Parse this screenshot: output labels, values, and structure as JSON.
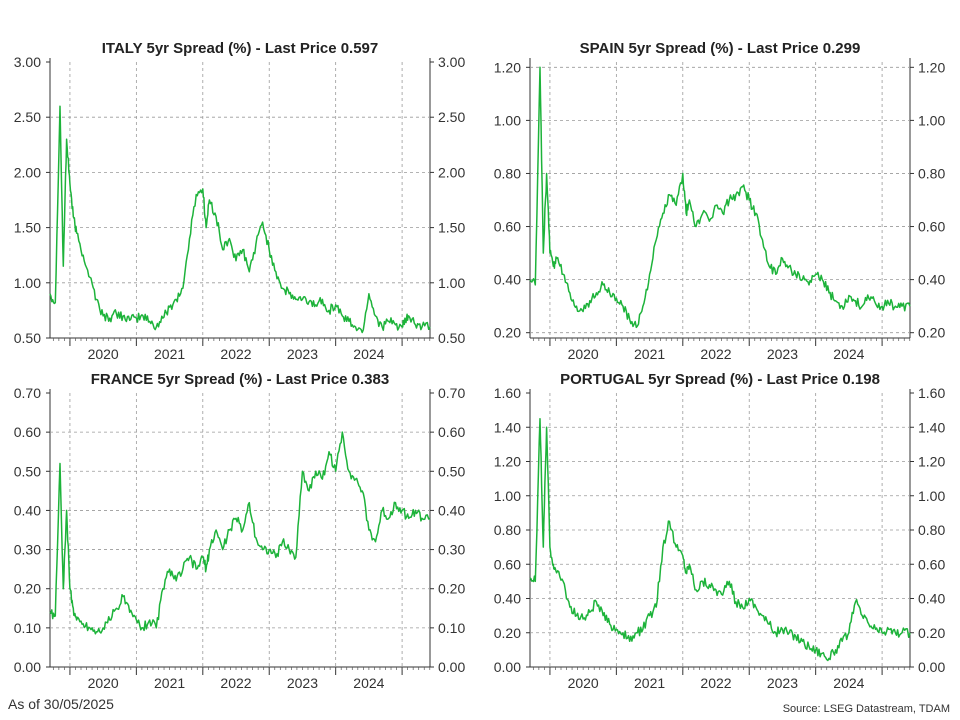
{
  "as_of": "As of 30/05/2025",
  "source": "Source: LSEG Datastream, TDAM",
  "line_color": "#1db33a",
  "chart_data": [
    {
      "type": "line",
      "title": "ITALY 5yr Spread (%) - Last Price 0.597",
      "x_ticks": [
        "2020",
        "2021",
        "2022",
        "2023",
        "2024"
      ],
      "xlim": [
        2019.7,
        2025.42
      ],
      "ylim": [
        0.5,
        3.0
      ],
      "y_ticks": [
        "0.50",
        "1.00",
        "1.50",
        "2.00",
        "2.50",
        "3.00"
      ],
      "grid": true,
      "series": [
        {
          "x": [
            2019.7,
            2019.78,
            2019.85,
            2019.9,
            2019.95,
            2020.0,
            2020.05,
            2020.1,
            2020.2,
            2020.3,
            2020.4,
            2020.5,
            2020.6,
            2020.7,
            2020.8,
            2020.9,
            2021.0,
            2021.1,
            2021.2,
            2021.3,
            2021.4,
            2021.5,
            2021.6,
            2021.7,
            2021.8,
            2021.9,
            2022.0,
            2022.05,
            2022.1,
            2022.2,
            2022.3,
            2022.4,
            2022.5,
            2022.6,
            2022.7,
            2022.8,
            2022.9,
            2023.0,
            2023.1,
            2023.2,
            2023.3,
            2023.4,
            2023.5,
            2023.6,
            2023.7,
            2023.8,
            2023.9,
            2024.0,
            2024.1,
            2024.2,
            2024.3,
            2024.4,
            2024.5,
            2024.6,
            2024.7,
            2024.8,
            2024.9,
            2025.0,
            2025.05,
            2025.1,
            2025.2,
            2025.3,
            2025.42
          ],
          "values": [
            0.9,
            0.82,
            2.6,
            1.15,
            2.3,
            1.9,
            1.6,
            1.45,
            1.25,
            1.05,
            0.85,
            0.7,
            0.68,
            0.72,
            0.7,
            0.66,
            0.68,
            0.7,
            0.65,
            0.6,
            0.68,
            0.78,
            0.85,
            0.95,
            1.4,
            1.8,
            1.85,
            1.5,
            1.75,
            1.6,
            1.3,
            1.4,
            1.2,
            1.3,
            1.1,
            1.35,
            1.55,
            1.3,
            1.1,
            0.95,
            0.9,
            0.85,
            0.85,
            0.83,
            0.8,
            0.85,
            0.75,
            0.8,
            0.7,
            0.65,
            0.6,
            0.55,
            0.9,
            0.7,
            0.6,
            0.65,
            0.62,
            0.6,
            0.65,
            0.7,
            0.62,
            0.6,
            0.6
          ]
        }
      ]
    },
    {
      "type": "line",
      "title": "SPAIN 5yr Spread (%) - Last Price 0.299",
      "x_ticks": [
        "2020",
        "2021",
        "2022",
        "2023",
        "2024"
      ],
      "xlim": [
        2019.7,
        2025.42
      ],
      "ylim": [
        0.18,
        1.22
      ],
      "y_ticks": [
        "0.20",
        "0.40",
        "0.60",
        "0.80",
        "1.00",
        "1.20"
      ],
      "grid": true,
      "series": [
        {
          "x": [
            2019.7,
            2019.78,
            2019.85,
            2019.9,
            2019.95,
            2020.0,
            2020.05,
            2020.1,
            2020.2,
            2020.3,
            2020.4,
            2020.5,
            2020.6,
            2020.7,
            2020.8,
            2020.9,
            2021.0,
            2021.1,
            2021.2,
            2021.3,
            2021.4,
            2021.5,
            2021.6,
            2021.7,
            2021.8,
            2021.9,
            2022.0,
            2022.05,
            2022.1,
            2022.2,
            2022.3,
            2022.4,
            2022.5,
            2022.6,
            2022.7,
            2022.8,
            2022.9,
            2023.0,
            2023.1,
            2023.2,
            2023.3,
            2023.4,
            2023.5,
            2023.6,
            2023.7,
            2023.8,
            2023.9,
            2024.0,
            2024.1,
            2024.2,
            2024.3,
            2024.4,
            2024.5,
            2024.6,
            2024.7,
            2024.8,
            2024.9,
            2025.0,
            2025.1,
            2025.2,
            2025.3,
            2025.42
          ],
          "values": [
            0.4,
            0.38,
            1.2,
            0.5,
            0.8,
            0.5,
            0.45,
            0.48,
            0.42,
            0.35,
            0.3,
            0.28,
            0.32,
            0.35,
            0.38,
            0.35,
            0.33,
            0.3,
            0.25,
            0.22,
            0.3,
            0.42,
            0.55,
            0.65,
            0.72,
            0.68,
            0.8,
            0.65,
            0.7,
            0.6,
            0.65,
            0.62,
            0.68,
            0.65,
            0.7,
            0.72,
            0.75,
            0.7,
            0.65,
            0.55,
            0.45,
            0.42,
            0.48,
            0.45,
            0.42,
            0.4,
            0.38,
            0.42,
            0.4,
            0.35,
            0.32,
            0.3,
            0.34,
            0.32,
            0.3,
            0.33,
            0.31,
            0.3,
            0.31,
            0.3,
            0.3,
            0.3
          ]
        }
      ]
    },
    {
      "type": "line",
      "title": "FRANCE 5yr Spread (%) - Last Price 0.383",
      "x_ticks": [
        "2020",
        "2021",
        "2022",
        "2023",
        "2024"
      ],
      "xlim": [
        2019.7,
        2025.42
      ],
      "ylim": [
        0.0,
        0.7
      ],
      "y_ticks": [
        "0.00",
        "0.10",
        "0.20",
        "0.30",
        "0.40",
        "0.50",
        "0.60",
        "0.70"
      ],
      "grid": true,
      "series": [
        {
          "x": [
            2019.7,
            2019.78,
            2019.85,
            2019.9,
            2019.95,
            2020.0,
            2020.05,
            2020.1,
            2020.2,
            2020.3,
            2020.4,
            2020.5,
            2020.6,
            2020.7,
            2020.8,
            2020.9,
            2021.0,
            2021.1,
            2021.2,
            2021.3,
            2021.4,
            2021.5,
            2021.6,
            2021.7,
            2021.8,
            2021.9,
            2022.0,
            2022.05,
            2022.1,
            2022.2,
            2022.3,
            2022.4,
            2022.5,
            2022.6,
            2022.7,
            2022.8,
            2022.9,
            2023.0,
            2023.1,
            2023.2,
            2023.3,
            2023.4,
            2023.5,
            2023.6,
            2023.7,
            2023.8,
            2023.9,
            2024.0,
            2024.1,
            2024.2,
            2024.3,
            2024.4,
            2024.5,
            2024.6,
            2024.7,
            2024.8,
            2024.9,
            2025.0,
            2025.1,
            2025.2,
            2025.3,
            2025.42
          ],
          "values": [
            0.14,
            0.13,
            0.52,
            0.2,
            0.4,
            0.2,
            0.15,
            0.12,
            0.11,
            0.1,
            0.09,
            0.1,
            0.12,
            0.15,
            0.18,
            0.14,
            0.12,
            0.1,
            0.12,
            0.1,
            0.2,
            0.25,
            0.22,
            0.25,
            0.28,
            0.25,
            0.28,
            0.25,
            0.3,
            0.35,
            0.3,
            0.35,
            0.38,
            0.35,
            0.42,
            0.33,
            0.3,
            0.3,
            0.28,
            0.32,
            0.3,
            0.28,
            0.5,
            0.45,
            0.5,
            0.48,
            0.55,
            0.5,
            0.6,
            0.5,
            0.48,
            0.45,
            0.35,
            0.32,
            0.4,
            0.38,
            0.42,
            0.4,
            0.38,
            0.4,
            0.38,
            0.38
          ]
        }
      ]
    },
    {
      "type": "line",
      "title": "PORTUGAL 5yr Spread (%) - Last Price 0.198",
      "x_ticks": [
        "2020",
        "2021",
        "2022",
        "2023",
        "2024"
      ],
      "xlim": [
        2019.7,
        2025.42
      ],
      "ylim": [
        0.0,
        1.6
      ],
      "y_ticks": [
        "0.00",
        "0.20",
        "0.40",
        "0.60",
        "0.80",
        "1.00",
        "1.20",
        "1.40",
        "1.60"
      ],
      "grid": true,
      "series": [
        {
          "x": [
            2019.7,
            2019.78,
            2019.85,
            2019.9,
            2019.95,
            2020.0,
            2020.05,
            2020.1,
            2020.2,
            2020.3,
            2020.4,
            2020.5,
            2020.6,
            2020.7,
            2020.8,
            2020.9,
            2021.0,
            2021.1,
            2021.2,
            2021.3,
            2021.4,
            2021.5,
            2021.6,
            2021.7,
            2021.8,
            2021.9,
            2022.0,
            2022.05,
            2022.1,
            2022.2,
            2022.3,
            2022.4,
            2022.5,
            2022.6,
            2022.7,
            2022.8,
            2022.9,
            2023.0,
            2023.1,
            2023.2,
            2023.3,
            2023.4,
            2023.5,
            2023.6,
            2023.7,
            2023.8,
            2023.9,
            2024.0,
            2024.1,
            2024.2,
            2024.3,
            2024.4,
            2024.5,
            2024.6,
            2024.7,
            2024.8,
            2024.9,
            2025.0,
            2025.1,
            2025.2,
            2025.3,
            2025.42
          ],
          "values": [
            0.52,
            0.5,
            1.45,
            0.7,
            1.4,
            0.7,
            0.6,
            0.55,
            0.5,
            0.35,
            0.3,
            0.28,
            0.32,
            0.38,
            0.3,
            0.25,
            0.22,
            0.2,
            0.15,
            0.2,
            0.22,
            0.3,
            0.35,
            0.7,
            0.85,
            0.7,
            0.65,
            0.55,
            0.6,
            0.45,
            0.5,
            0.48,
            0.45,
            0.42,
            0.5,
            0.38,
            0.35,
            0.4,
            0.35,
            0.3,
            0.25,
            0.2,
            0.22,
            0.2,
            0.18,
            0.15,
            0.12,
            0.1,
            0.08,
            0.05,
            0.1,
            0.15,
            0.2,
            0.38,
            0.3,
            0.25,
            0.22,
            0.2,
            0.22,
            0.2,
            0.2,
            0.2
          ]
        }
      ]
    }
  ]
}
